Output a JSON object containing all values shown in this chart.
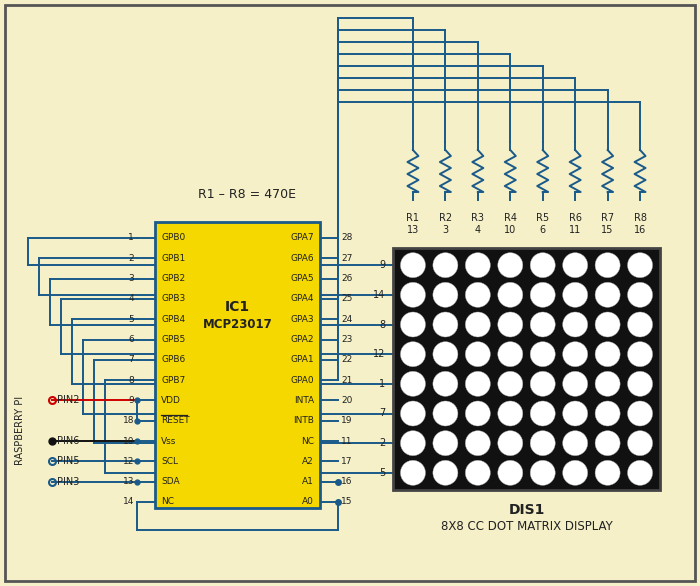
{
  "bg_color": "#f5f0c8",
  "border_color": "#555555",
  "wire_color": "#1a5a8a",
  "wire_lw": 1.4,
  "ic_fill": "#f5d800",
  "ic_border": "#1a5a8a",
  "ic_border_lw": 2.0,
  "dot_matrix_fill": "#111111",
  "dot_color": "#ffffff",
  "res_color": "#1a5a8a",
  "text_color": "#222222",
  "red_wire_color": "#cc0000",
  "black_wire_color": "#111111",
  "ic_label1": "IC1",
  "ic_label2": "MCP23017",
  "res_label": "R1 – R8 = 470E",
  "dis_label1": "DIS1",
  "dis_label2": "8X8 CC DOT MATRIX DISPLAY",
  "raspi_label": "RASPBERRY PI",
  "left_pins": [
    {
      "num": "1",
      "label": "GPB0"
    },
    {
      "num": "2",
      "label": "GPB1"
    },
    {
      "num": "3",
      "label": "GPB2"
    },
    {
      "num": "4",
      "label": "GPB3"
    },
    {
      "num": "5",
      "label": "GPB4"
    },
    {
      "num": "6",
      "label": "GPB5"
    },
    {
      "num": "7",
      "label": "GPB6"
    },
    {
      "num": "8",
      "label": "GPB7"
    },
    {
      "num": "9",
      "label": "VDD"
    },
    {
      "num": "18",
      "label": "RESET"
    },
    {
      "num": "10",
      "label": "Vss"
    },
    {
      "num": "12",
      "label": "SCL"
    },
    {
      "num": "13",
      "label": "SDA"
    },
    {
      "num": "14",
      "label": "NC"
    }
  ],
  "right_pins": [
    {
      "num": "28",
      "label": "GPA7"
    },
    {
      "num": "27",
      "label": "GPA6"
    },
    {
      "num": "26",
      "label": "GPA5"
    },
    {
      "num": "25",
      "label": "GPA4"
    },
    {
      "num": "24",
      "label": "GPA3"
    },
    {
      "num": "23",
      "label": "GPA2"
    },
    {
      "num": "22",
      "label": "GPA1"
    },
    {
      "num": "21",
      "label": "GPA0"
    },
    {
      "num": "20",
      "label": "INTA"
    },
    {
      "num": "19",
      "label": "INTB"
    },
    {
      "num": "11",
      "label": "NC"
    },
    {
      "num": "17",
      "label": "A2"
    },
    {
      "num": "16",
      "label": "A1"
    },
    {
      "num": "15",
      "label": "A0"
    }
  ],
  "col_pin_nums": [
    "13",
    "3",
    "4",
    "10",
    "6",
    "11",
    "15",
    "16"
  ],
  "col_res_names": [
    "R1",
    "R2",
    "R3",
    "R4",
    "R5",
    "R6",
    "R7",
    "R8"
  ],
  "row_pin_nums": [
    "9",
    "14",
    "8",
    "12",
    "1",
    "7",
    "2",
    "5"
  ],
  "raspi_pins": [
    {
      "name": "PIN2",
      "color": "red",
      "filled": false
    },
    {
      "name": "PIN6",
      "color": "black",
      "filled": true
    },
    {
      "name": "PIN5",
      "color": "blue",
      "filled": false
    },
    {
      "name": "PIN3",
      "color": "blue",
      "filled": false
    }
  ]
}
